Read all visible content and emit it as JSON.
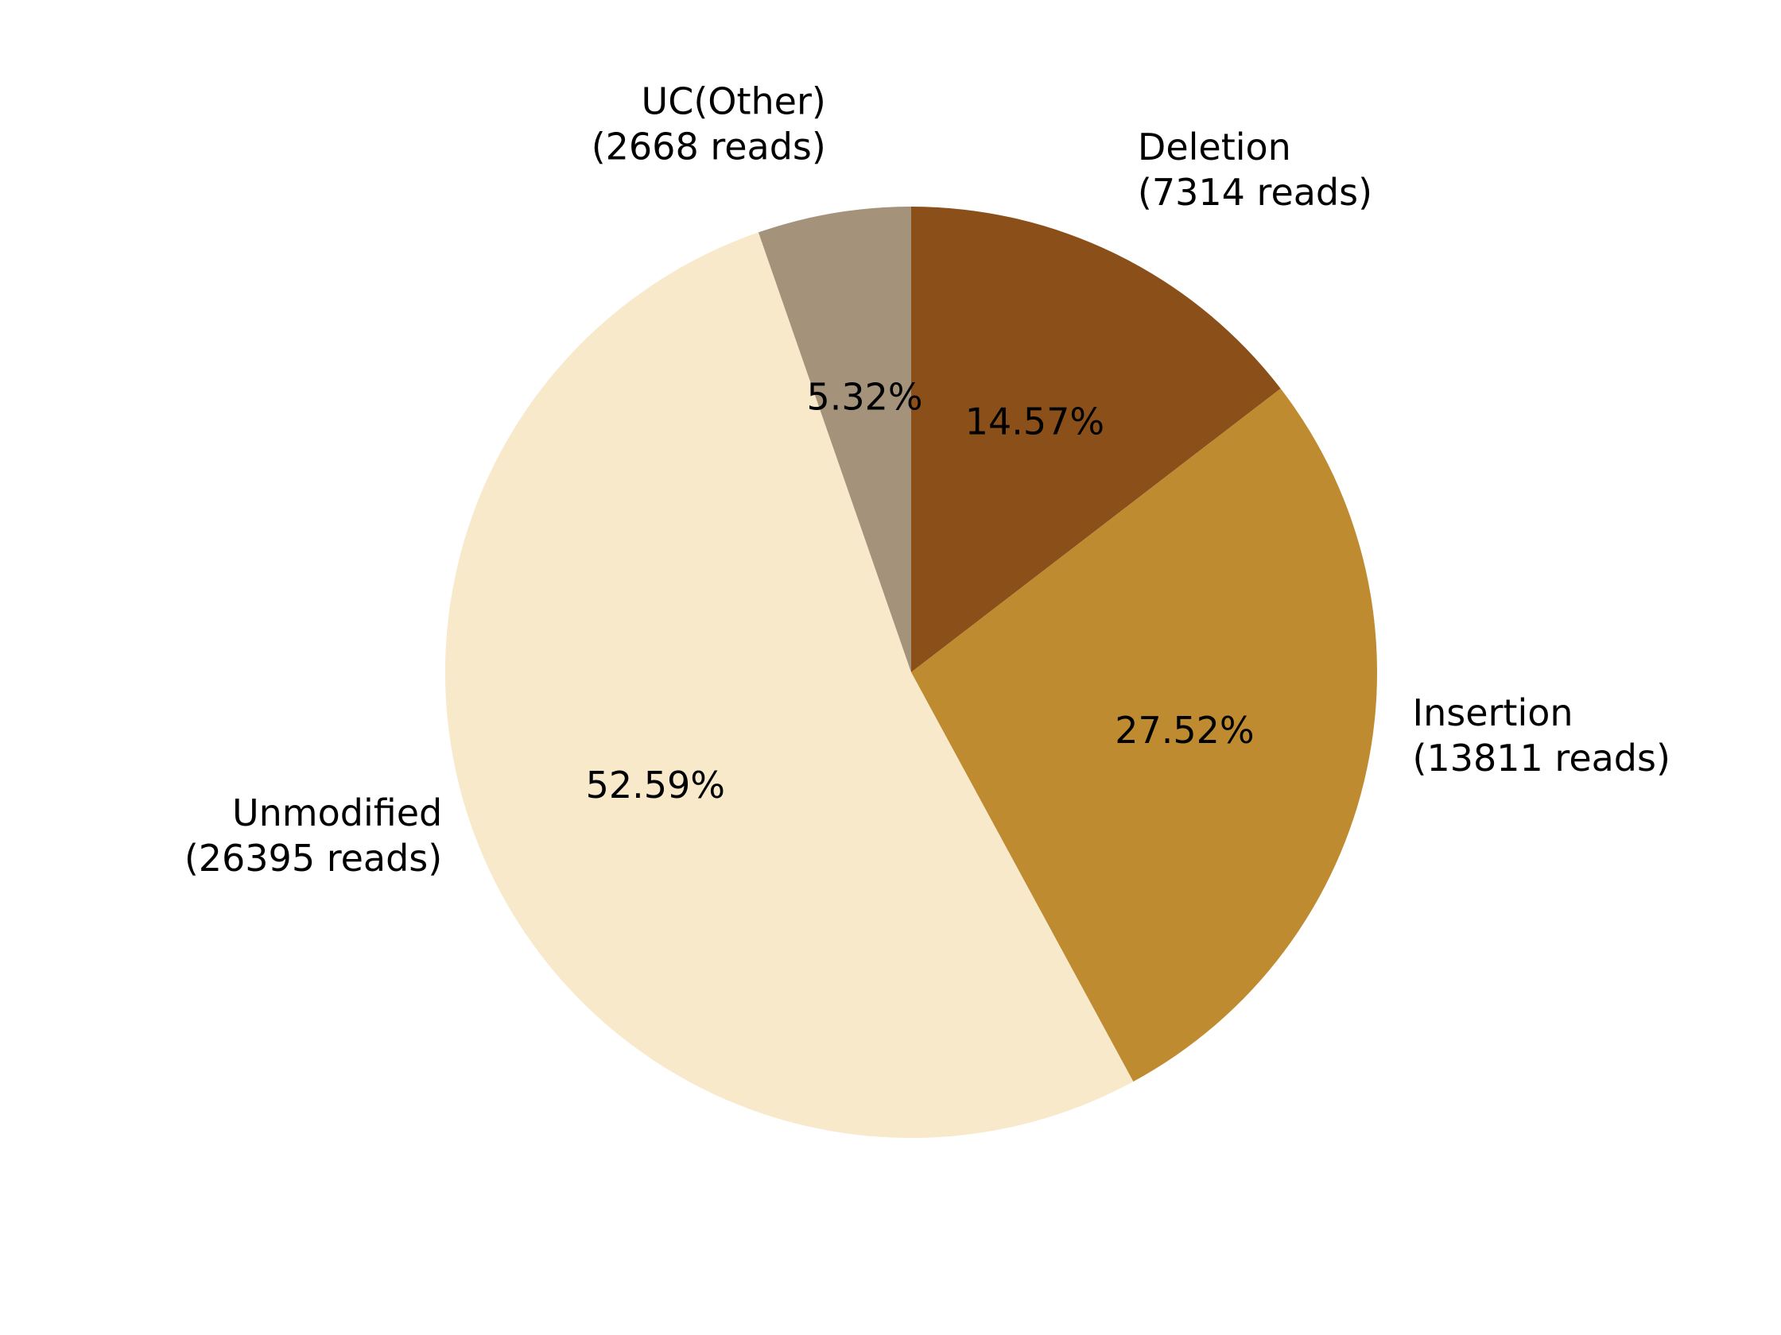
{
  "chart_data": {
    "type": "pie",
    "title": "",
    "start_angle_deg": 90,
    "direction": "clockwise",
    "slices": [
      {
        "name": "Deletion",
        "reads": 7314,
        "reads_label": "(7314 reads)",
        "percent": 14.57,
        "percent_label": "14.57%",
        "color": "#8B4F1A"
      },
      {
        "name": "Insertion",
        "reads": 13811,
        "reads_label": "(13811 reads)",
        "percent": 27.52,
        "percent_label": "27.52%",
        "color": "#BF8B31"
      },
      {
        "name": "Unmodified",
        "reads": 26395,
        "reads_label": "(26395 reads)",
        "percent": 52.59,
        "percent_label": "52.59%",
        "color": "#F7E9CA"
      },
      {
        "name": "UC(Other)",
        "reads": 2668,
        "reads_label": "(2668 reads)",
        "percent": 5.32,
        "percent_label": "5.32%",
        "color": "#A4927A"
      }
    ]
  }
}
